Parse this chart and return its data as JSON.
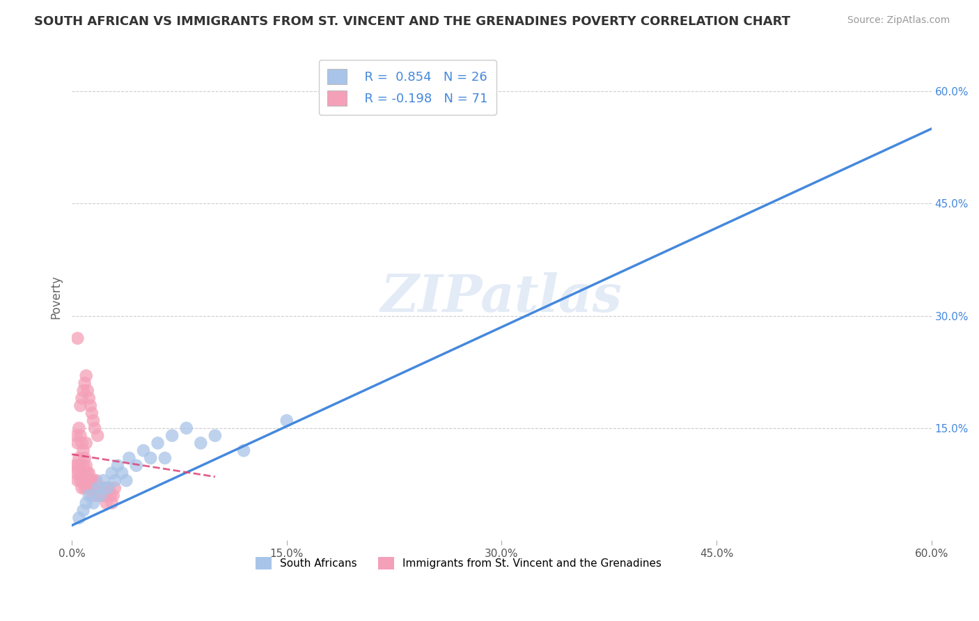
{
  "title": "SOUTH AFRICAN VS IMMIGRANTS FROM ST. VINCENT AND THE GRENADINES POVERTY CORRELATION CHART",
  "source": "Source: ZipAtlas.com",
  "ylabel": "Poverty",
  "r_blue": 0.854,
  "n_blue": 26,
  "r_pink": -0.198,
  "n_pink": 71,
  "color_blue": "#a8c4e8",
  "color_pink": "#f4a0b8",
  "color_blue_line": "#4488dd",
  "color_pink_line": "#dd4477",
  "color_text": "#4488dd",
  "watermark": "ZIPatlas",
  "xlim": [
    0.0,
    0.6
  ],
  "ylim": [
    0.0,
    0.65
  ],
  "xticks": [
    0.0,
    0.15,
    0.3,
    0.45,
    0.6
  ],
  "yticks_right": [
    0.15,
    0.3,
    0.45,
    0.6
  ],
  "blue_trend_x0": 0.0,
  "blue_trend_y0": 0.02,
  "blue_trend_x1": 0.6,
  "blue_trend_y1": 0.55,
  "pink_trend_x0": 0.0,
  "pink_trend_y0": 0.115,
  "pink_trend_x1": 0.1,
  "pink_trend_y1": 0.085,
  "blue_scatter_x": [
    0.005,
    0.008,
    0.01,
    0.012,
    0.015,
    0.018,
    0.02,
    0.022,
    0.025,
    0.028,
    0.03,
    0.032,
    0.035,
    0.038,
    0.04,
    0.045,
    0.05,
    0.055,
    0.06,
    0.065,
    0.07,
    0.08,
    0.09,
    0.1,
    0.12,
    0.15
  ],
  "blue_scatter_y": [
    0.03,
    0.04,
    0.05,
    0.06,
    0.05,
    0.07,
    0.06,
    0.08,
    0.07,
    0.09,
    0.08,
    0.1,
    0.09,
    0.08,
    0.11,
    0.1,
    0.12,
    0.11,
    0.13,
    0.11,
    0.14,
    0.15,
    0.13,
    0.14,
    0.12,
    0.16
  ],
  "pink_scatter_x": [
    0.002,
    0.003,
    0.004,
    0.004,
    0.005,
    0.005,
    0.006,
    0.006,
    0.007,
    0.007,
    0.008,
    0.008,
    0.009,
    0.009,
    0.01,
    0.01,
    0.011,
    0.011,
    0.012,
    0.012,
    0.013,
    0.013,
    0.014,
    0.014,
    0.015,
    0.015,
    0.016,
    0.016,
    0.017,
    0.017,
    0.018,
    0.018,
    0.019,
    0.019,
    0.02,
    0.02,
    0.021,
    0.021,
    0.022,
    0.022,
    0.023,
    0.023,
    0.024,
    0.025,
    0.025,
    0.026,
    0.027,
    0.028,
    0.029,
    0.03,
    0.003,
    0.004,
    0.005,
    0.006,
    0.007,
    0.008,
    0.009,
    0.01,
    0.006,
    0.007,
    0.008,
    0.009,
    0.01,
    0.011,
    0.012,
    0.013,
    0.014,
    0.015,
    0.016,
    0.018,
    0.004
  ],
  "pink_scatter_y": [
    0.1,
    0.09,
    0.1,
    0.08,
    0.11,
    0.09,
    0.1,
    0.08,
    0.09,
    0.07,
    0.1,
    0.08,
    0.09,
    0.07,
    0.08,
    0.1,
    0.09,
    0.07,
    0.08,
    0.09,
    0.08,
    0.07,
    0.08,
    0.06,
    0.07,
    0.08,
    0.07,
    0.06,
    0.07,
    0.08,
    0.07,
    0.06,
    0.07,
    0.06,
    0.07,
    0.06,
    0.07,
    0.06,
    0.07,
    0.06,
    0.07,
    0.06,
    0.05,
    0.07,
    0.06,
    0.07,
    0.06,
    0.05,
    0.06,
    0.07,
    0.14,
    0.13,
    0.15,
    0.14,
    0.13,
    0.12,
    0.11,
    0.13,
    0.18,
    0.19,
    0.2,
    0.21,
    0.22,
    0.2,
    0.19,
    0.18,
    0.17,
    0.16,
    0.15,
    0.14,
    0.27
  ]
}
